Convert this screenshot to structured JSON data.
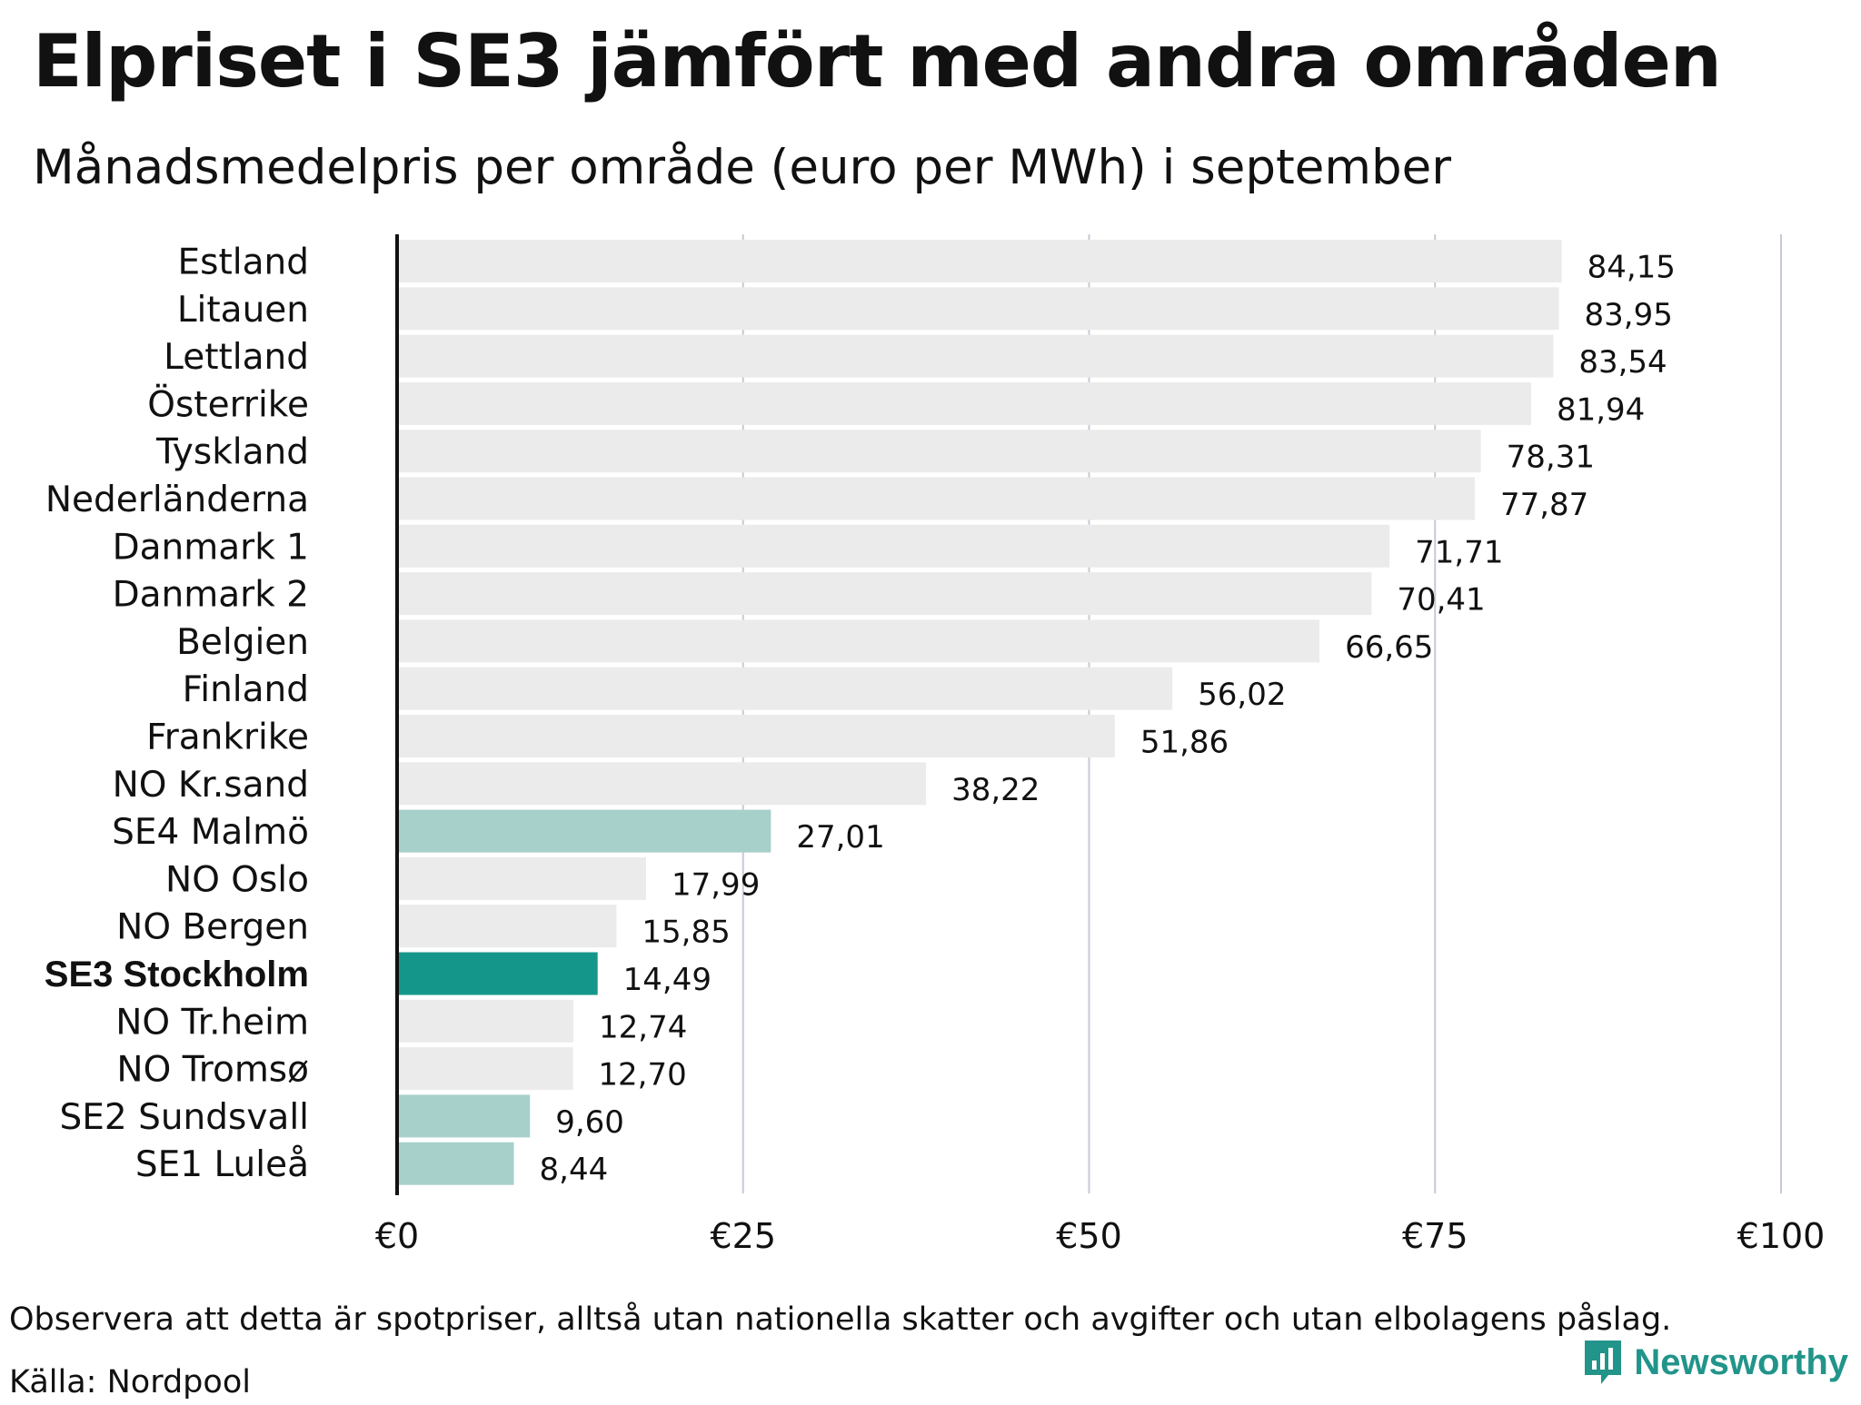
{
  "title": "Elpriset i SE3 jämfört med andra områden",
  "subtitle": "Månadsmedelpris per område (euro per MWh) i september",
  "note": "Observera att detta är spotpriser, alltså utan nationella skatter och avgifter och utan elbolagens påslag.",
  "source": "Källa: Nordpool",
  "brand": "Newsworthy",
  "colors": {
    "default_bar": "#ebebeb",
    "swedish_bar": "#a7d0ca",
    "highlight_bar": "#15968a",
    "brand": "#22948a"
  },
  "chart_data": {
    "type": "bar",
    "orientation": "horizontal",
    "title": "Elpriset i SE3 jämfört med andra områden",
    "subtitle": "Månadsmedelpris per område (euro per MWh) i september",
    "categories": [
      "Estland",
      "Litauen",
      "Lettland",
      "Österrike",
      "Tyskland",
      "Nederländerna",
      "Danmark 1",
      "Danmark 2",
      "Belgien",
      "Finland",
      "Frankrike",
      "NO Kr.sand",
      "SE4 Malmö",
      "NO Oslo",
      "NO Bergen",
      "SE3 Stockholm",
      "NO Tr.heim",
      "NO Tromsø",
      "SE2 Sundsvall",
      "SE1 Luleå"
    ],
    "values": [
      84.15,
      83.95,
      83.54,
      81.94,
      78.31,
      77.87,
      71.71,
      70.41,
      66.65,
      56.02,
      51.86,
      38.22,
      27.01,
      17.99,
      15.85,
      14.49,
      12.74,
      12.7,
      9.6,
      8.44
    ],
    "value_labels": [
      "84,15",
      "83,95",
      "83,54",
      "81,94",
      "78,31",
      "77,87",
      "71,71",
      "70,41",
      "66,65",
      "56,02",
      "51,86",
      "38,22",
      "27,01",
      "17,99",
      "15,85",
      "14,49",
      "12,74",
      "12,70",
      "9,60",
      "8,44"
    ],
    "group": [
      "other",
      "other",
      "other",
      "other",
      "other",
      "other",
      "other",
      "other",
      "other",
      "other",
      "other",
      "other",
      "swedish",
      "other",
      "other",
      "highlight",
      "other",
      "other",
      "swedish",
      "swedish"
    ],
    "highlight": "SE3 Stockholm",
    "xlim": [
      0,
      100
    ],
    "x_ticks": [
      0,
      25,
      50,
      75,
      100
    ],
    "x_tick_labels": [
      "€0",
      "€25",
      "€50",
      "€75",
      "€100"
    ],
    "grid": true
  }
}
